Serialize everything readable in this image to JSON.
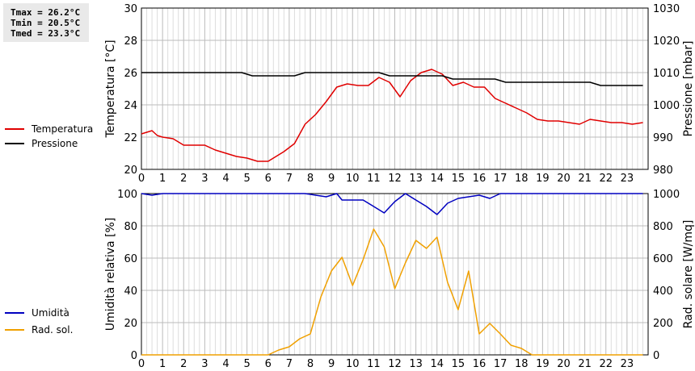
{
  "stats": {
    "tmax": "Tmax = 26.2°C",
    "tmin": "Tmin = 20.5°C",
    "tmed": "Tmed = 23.3°C"
  },
  "colors": {
    "temperature": "#e00000",
    "pressure": "#000000",
    "humidity": "#0000c0",
    "radiation": "#f0a000",
    "grid_minor": "#dddddd",
    "grid_major": "#bbbbbb"
  },
  "chart_data": [
    {
      "type": "line",
      "x_ticks": [
        "0",
        "1",
        "2",
        "3",
        "4",
        "5",
        "6",
        "7",
        "8",
        "9",
        "10",
        "11",
        "12",
        "13",
        "14",
        "15",
        "16",
        "17",
        "18",
        "19",
        "20",
        "21",
        "22",
        "23"
      ],
      "xlim": [
        0,
        24
      ],
      "ylabel": "Temperatura [°C]",
      "ylim": [
        20,
        30
      ],
      "y_ticks": [
        "20",
        "22",
        "24",
        "26",
        "28",
        "30"
      ],
      "y2label": "Pressione [mbar]",
      "y2lim": [
        980,
        1030
      ],
      "y2_ticks": [
        "980",
        "990",
        "1000",
        "1010",
        "1020",
        "1030"
      ],
      "legend": "left",
      "grid": true,
      "series": [
        {
          "name": "Temperatura",
          "axis": "left",
          "x": [
            0,
            0.5,
            0.75,
            1,
            1.5,
            2,
            2.5,
            3,
            3.5,
            4,
            4.5,
            5,
            5.5,
            6,
            6.25,
            6.75,
            7.25,
            7.75,
            8.25,
            8.75,
            9.25,
            9.75,
            10.25,
            10.75,
            11.25,
            11.75,
            12.25,
            12.75,
            13.25,
            13.75,
            14.25,
            14.75,
            15.25,
            15.75,
            16.25,
            16.75,
            17.25,
            17.75,
            18.25,
            18.75,
            19.25,
            19.75,
            20.25,
            20.75,
            21.25,
            21.75,
            22.25,
            22.75,
            23.25,
            23.75
          ],
          "values": [
            22.2,
            22.4,
            22.1,
            22.0,
            21.9,
            21.5,
            21.5,
            21.5,
            21.2,
            21.0,
            20.8,
            20.7,
            20.5,
            20.5,
            20.7,
            21.1,
            21.6,
            22.8,
            23.4,
            24.2,
            25.1,
            25.3,
            25.2,
            25.2,
            25.7,
            25.4,
            24.5,
            25.5,
            26.0,
            26.2,
            25.9,
            25.2,
            25.4,
            25.1,
            25.1,
            24.4,
            24.1,
            23.8,
            23.5,
            23.1,
            23.0,
            23.0,
            22.9,
            22.8,
            23.1,
            23.0,
            22.9,
            22.9,
            22.8,
            22.9
          ]
        },
        {
          "name": "Pressione",
          "axis": "right",
          "x": [
            0,
            4.5,
            4.75,
            5.25,
            6.5,
            7.25,
            7.75,
            11.25,
            11.75,
            14.25,
            14.75,
            16.25,
            16.75,
            17.25,
            18.25,
            21.25,
            21.75,
            22.25,
            23.75
          ],
          "values": [
            1010,
            1010,
            1010,
            1009,
            1009,
            1009,
            1010,
            1010,
            1009,
            1009,
            1008,
            1008,
            1008,
            1007,
            1007,
            1007,
            1006,
            1006,
            1006
          ]
        }
      ]
    },
    {
      "type": "line",
      "x_ticks": [
        "0",
        "1",
        "2",
        "3",
        "4",
        "5",
        "6",
        "7",
        "8",
        "9",
        "10",
        "11",
        "12",
        "13",
        "14",
        "15",
        "16",
        "17",
        "18",
        "19",
        "20",
        "21",
        "22",
        "23"
      ],
      "xlim": [
        0,
        24
      ],
      "ylabel": "Umidità relativa [%]",
      "ylim": [
        0,
        100
      ],
      "y_ticks": [
        "0",
        "20",
        "40",
        "60",
        "80",
        "100"
      ],
      "y2label": "Rad. solare [W/mq]",
      "y2lim": [
        0,
        1000
      ],
      "y2_ticks": [
        "0",
        "200",
        "400",
        "600",
        "800",
        "1000"
      ],
      "legend": "left",
      "grid": true,
      "series": [
        {
          "name": "Umidità",
          "axis": "left",
          "x": [
            0,
            0.5,
            1,
            1.5,
            7.75,
            8.25,
            8.75,
            9.25,
            9.5,
            10,
            10.5,
            11,
            11.5,
            12,
            12.5,
            13,
            13.5,
            14,
            14.5,
            15,
            15.5,
            16,
            16.5,
            17,
            17.5,
            23.75
          ],
          "values": [
            100,
            99,
            100,
            100,
            100,
            99,
            98,
            100,
            96,
            96,
            96,
            92,
            88,
            95,
            100,
            96,
            92,
            87,
            94,
            97,
            98,
            99,
            97,
            100,
            100,
            100
          ]
        },
        {
          "name": "Rad. sol.",
          "axis": "right",
          "x": [
            0,
            6,
            6.5,
            7,
            7.5,
            8,
            8.5,
            9,
            9.5,
            10,
            10.5,
            11,
            11.5,
            12,
            12.5,
            13,
            13.5,
            14,
            14.5,
            15,
            15.5,
            16,
            16.5,
            17,
            17.5,
            18,
            18.5,
            19,
            23.75
          ],
          "values": [
            0,
            0,
            30,
            50,
            100,
            130,
            360,
            520,
            605,
            430,
            590,
            780,
            670,
            410,
            570,
            710,
            660,
            730,
            450,
            280,
            520,
            130,
            195,
            130,
            60,
            40,
            0,
            0,
            0
          ]
        }
      ]
    }
  ]
}
